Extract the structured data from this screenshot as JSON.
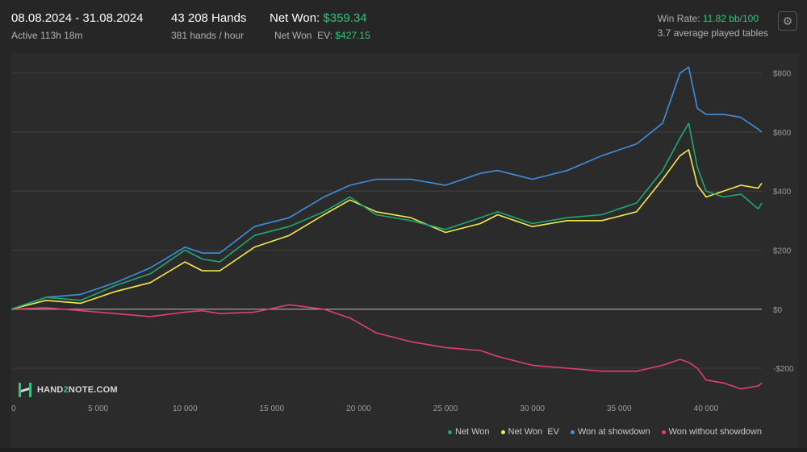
{
  "header": {
    "date_range": "08.08.2024 - 31.08.2024",
    "active": "Active 113h 18m",
    "hands": "43 208 Hands",
    "hands_per_hour": "381 hands / hour",
    "net_won_label": "Net Won: ",
    "net_won_value": "$359.34",
    "net_won_ev_label": "Net Won  EV: ",
    "net_won_ev_value": "$427.15",
    "win_rate_label": "Win Rate: ",
    "win_rate_value": "11.82 bb/100",
    "tables": "3.7 average played tables",
    "settings_icon": "gear-icon"
  },
  "logo": {
    "prefix": "HAND",
    "two": "2",
    "suffix": "NOTE.COM"
  },
  "colors": {
    "net_won": "#1fa971",
    "net_won_ev": "#f2e94e",
    "won_at_showdown": "#3f8fe0",
    "won_without_showdown": "#e0406e",
    "accent_green": "#35c27f"
  },
  "chart_data": {
    "type": "line",
    "xlabel": "",
    "ylabel": "",
    "xlim": [
      0,
      43208
    ],
    "ylim": [
      -290,
      840
    ],
    "x_ticks": [
      0,
      5000,
      10000,
      15000,
      20000,
      25000,
      30000,
      35000,
      40000
    ],
    "x_tick_labels": [
      "0",
      "5 000",
      "10 000",
      "15 000",
      "20 000",
      "25 000",
      "30 000",
      "35 000",
      "40 000"
    ],
    "y_ticks": [
      -200,
      0,
      200,
      400,
      600,
      800
    ],
    "y_tick_labels": [
      "-$200",
      "$0",
      "$200",
      "$400",
      "$600",
      "$800"
    ],
    "grid": true,
    "legend_position": "bottom-right",
    "x": [
      0,
      2000,
      4000,
      6000,
      8000,
      10000,
      11000,
      12000,
      14000,
      16000,
      18000,
      19500,
      21000,
      23000,
      25000,
      27000,
      28000,
      30000,
      32000,
      34000,
      36000,
      37500,
      38500,
      39000,
      39500,
      40000,
      41000,
      42000,
      43000,
      43208
    ],
    "series": [
      {
        "name": "Net Won",
        "values": [
          0,
          40,
          30,
          80,
          120,
          200,
          170,
          160,
          250,
          280,
          330,
          380,
          320,
          300,
          270,
          310,
          330,
          290,
          310,
          320,
          360,
          470,
          580,
          630,
          480,
          400,
          380,
          390,
          340,
          359.34
        ]
      },
      {
        "name": "Net Won  EV",
        "values": [
          0,
          30,
          20,
          60,
          90,
          160,
          130,
          130,
          210,
          250,
          320,
          370,
          330,
          310,
          260,
          290,
          320,
          280,
          300,
          300,
          330,
          440,
          520,
          540,
          420,
          380,
          400,
          420,
          410,
          427.15
        ]
      },
      {
        "name": "Won at showdown",
        "values": [
          0,
          40,
          50,
          90,
          140,
          210,
          190,
          190,
          280,
          310,
          380,
          420,
          440,
          440,
          420,
          460,
          470,
          440,
          470,
          520,
          560,
          630,
          800,
          820,
          680,
          660,
          660,
          650,
          610,
          600
        ]
      },
      {
        "name": "Won without showdown",
        "values": [
          0,
          5,
          -5,
          -15,
          -25,
          -10,
          -5,
          -15,
          -10,
          15,
          0,
          -30,
          -80,
          -110,
          -130,
          -140,
          -160,
          -190,
          -200,
          -210,
          -210,
          -190,
          -170,
          -180,
          -200,
          -240,
          -250,
          -270,
          -260,
          -250
        ]
      }
    ]
  },
  "legend": [
    "Net Won",
    "Net Won  EV",
    "Won at showdown",
    "Won without showdown"
  ]
}
